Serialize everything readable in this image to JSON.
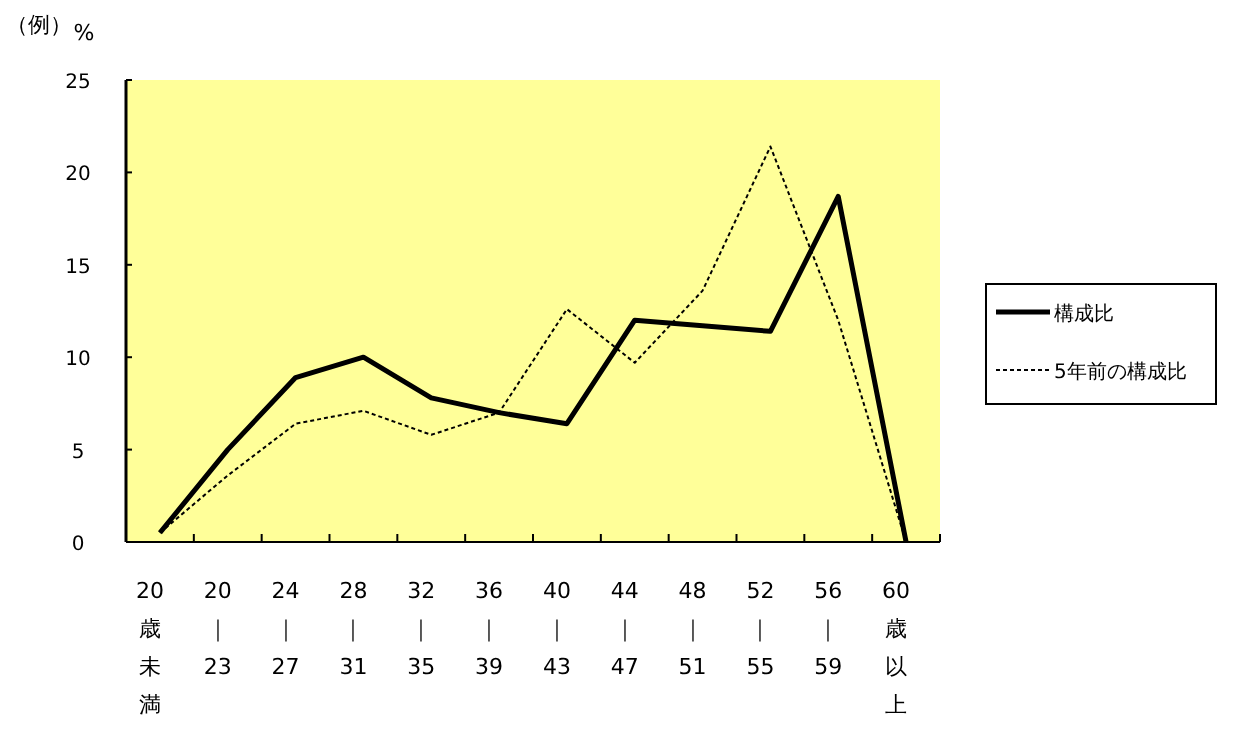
{
  "chart_data": {
    "type": "line",
    "title": "（例）",
    "ylabel": "%",
    "categories": [
      "20歳未満",
      "20｜23",
      "24｜27",
      "28｜31",
      "32｜35",
      "36｜39",
      "40｜43",
      "44｜47",
      "48｜51",
      "52｜55",
      "56｜59",
      "60歳以上"
    ],
    "series": [
      {
        "name": "構成比",
        "color": "#000000",
        "line_style": "solid",
        "values": [
          0.5,
          5.0,
          8.9,
          10.0,
          7.8,
          7.0,
          6.4,
          12.0,
          11.7,
          11.4,
          18.7,
          0
        ]
      },
      {
        "name": "5年前の構成比",
        "color": "#000000",
        "line_style": "dotted",
        "values": [
          0.5,
          3.6,
          6.4,
          7.1,
          5.8,
          7.0,
          12.6,
          9.7,
          13.6,
          21.4,
          12.0,
          0
        ]
      }
    ],
    "ylim": [
      0,
      25
    ],
    "yticks": [
      0,
      5,
      10,
      15,
      20,
      25
    ],
    "grid": false,
    "legend": "right",
    "marker": "none"
  }
}
